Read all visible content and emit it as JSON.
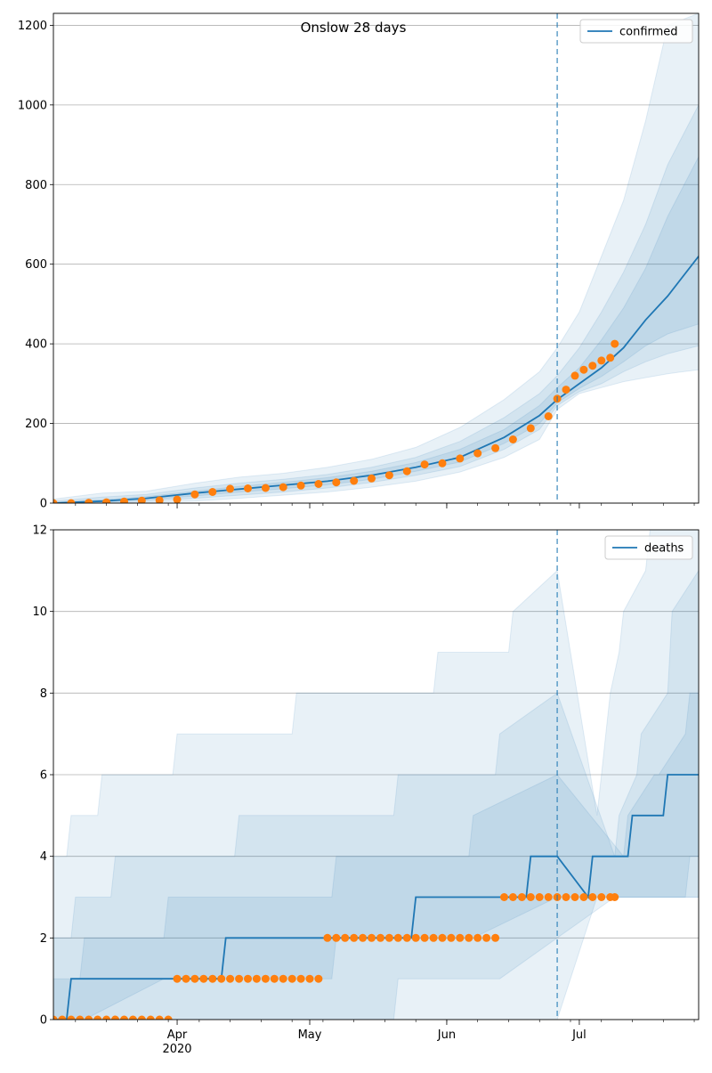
{
  "title": "Onslow 28 days",
  "colors": {
    "model_line": "#1f77b4",
    "observed": "#ff7f0e",
    "band": "#1f77b4",
    "grid": "#b0b0b0",
    "vline": "#1f77b4"
  },
  "x_ticks": [
    {
      "date": "2020-04-01",
      "label": "Apr",
      "sublabel": "2020"
    },
    {
      "date": "2020-05-01",
      "label": "May",
      "sublabel": ""
    },
    {
      "date": "2020-06-01",
      "label": "Jun",
      "sublabel": ""
    },
    {
      "date": "2020-07-01",
      "label": "Jul",
      "sublabel": ""
    }
  ],
  "chart_data": [
    {
      "type": "line",
      "legend": {
        "label": "confirmed",
        "placement": "top-right"
      },
      "grid": {
        "y": true,
        "x": false
      },
      "xlim": [
        "2020-03-04",
        "2020-07-28"
      ],
      "ylim": [
        0,
        1230
      ],
      "y_ticks": [
        0,
        200,
        400,
        600,
        800,
        1000,
        1200
      ],
      "forecast_start": "2020-06-26",
      "model": {
        "x": [
          "2020-03-04",
          "2020-03-15",
          "2020-03-25",
          "2020-04-05",
          "2020-04-15",
          "2020-04-25",
          "2020-05-05",
          "2020-05-15",
          "2020-05-25",
          "2020-06-04",
          "2020-06-14",
          "2020-06-22",
          "2020-06-26",
          "2020-07-01",
          "2020-07-06",
          "2020-07-11",
          "2020-07-16",
          "2020-07-21",
          "2020-07-28"
        ],
        "values": [
          0,
          5,
          12,
          25,
          35,
          45,
          55,
          70,
          90,
          115,
          165,
          220,
          260,
          300,
          340,
          390,
          460,
          520,
          620
        ]
      },
      "bands": [
        {
          "x": [
            "2020-03-04",
            "2020-03-15",
            "2020-03-25",
            "2020-04-05",
            "2020-04-15",
            "2020-04-25",
            "2020-05-05",
            "2020-05-15",
            "2020-05-25",
            "2020-06-04",
            "2020-06-14",
            "2020-06-22",
            "2020-06-26",
            "2020-07-01",
            "2020-07-06",
            "2020-07-11",
            "2020-07-16",
            "2020-07-21",
            "2020-07-28"
          ],
          "low": [
            0,
            0,
            2,
            5,
            12,
            20,
            28,
            40,
            55,
            78,
            115,
            160,
            235,
            275,
            290,
            305,
            315,
            325,
            335
          ],
          "high": [
            10,
            25,
            30,
            50,
            65,
            75,
            90,
            110,
            140,
            190,
            260,
            330,
            390,
            480,
            620,
            760,
            960,
            1200,
            1250
          ]
        },
        {
          "x": [
            "2020-03-04",
            "2020-03-15",
            "2020-03-25",
            "2020-04-05",
            "2020-04-15",
            "2020-04-25",
            "2020-05-05",
            "2020-05-15",
            "2020-05-25",
            "2020-06-04",
            "2020-06-14",
            "2020-06-22",
            "2020-06-26",
            "2020-07-01",
            "2020-07-06",
            "2020-07-11",
            "2020-07-16",
            "2020-07-21",
            "2020-07-28"
          ],
          "low": [
            0,
            2,
            5,
            12,
            20,
            28,
            38,
            52,
            70,
            92,
            135,
            185,
            245,
            280,
            300,
            330,
            355,
            375,
            395
          ],
          "high": [
            5,
            15,
            22,
            38,
            50,
            60,
            72,
            90,
            115,
            155,
            215,
            275,
            320,
            390,
            480,
            580,
            700,
            850,
            1000
          ]
        },
        {
          "x": [
            "2020-03-04",
            "2020-03-15",
            "2020-03-25",
            "2020-04-05",
            "2020-04-15",
            "2020-04-25",
            "2020-05-05",
            "2020-05-15",
            "2020-05-25",
            "2020-06-04",
            "2020-06-14",
            "2020-06-22",
            "2020-06-26",
            "2020-07-01",
            "2020-07-06",
            "2020-07-11",
            "2020-07-16",
            "2020-07-21",
            "2020-07-28"
          ],
          "low": [
            0,
            3,
            8,
            18,
            28,
            36,
            46,
            60,
            80,
            103,
            150,
            200,
            252,
            288,
            318,
            355,
            395,
            425,
            450
          ],
          "high": [
            2,
            8,
            16,
            30,
            42,
            52,
            64,
            80,
            102,
            135,
            185,
            245,
            290,
            340,
            410,
            490,
            590,
            720,
            870
          ]
        }
      ],
      "observed": {
        "x": [
          "2020-03-04",
          "2020-03-08",
          "2020-03-12",
          "2020-03-16",
          "2020-03-20",
          "2020-03-24",
          "2020-03-28",
          "2020-04-01",
          "2020-04-05",
          "2020-04-09",
          "2020-04-13",
          "2020-04-17",
          "2020-04-21",
          "2020-04-25",
          "2020-04-29",
          "2020-05-03",
          "2020-05-07",
          "2020-05-11",
          "2020-05-15",
          "2020-05-19",
          "2020-05-23",
          "2020-05-27",
          "2020-05-31",
          "2020-06-04",
          "2020-06-08",
          "2020-06-12",
          "2020-06-16",
          "2020-06-20",
          "2020-06-24",
          "2020-06-26",
          "2020-06-28",
          "2020-06-30",
          "2020-07-02",
          "2020-07-04",
          "2020-07-06",
          "2020-07-08",
          "2020-07-09"
        ],
        "values": [
          0,
          0,
          1,
          2,
          4,
          6,
          7,
          9,
          22,
          28,
          36,
          37,
          38,
          40,
          44,
          48,
          52,
          56,
          62,
          70,
          80,
          97,
          100,
          112,
          125,
          138,
          160,
          188,
          218,
          262,
          285,
          320,
          335,
          345,
          358,
          365,
          400
        ]
      }
    },
    {
      "type": "line",
      "legend": {
        "label": "deaths",
        "placement": "top-right"
      },
      "grid": {
        "y": true,
        "x": false
      },
      "xlim": [
        "2020-03-04",
        "2020-07-28"
      ],
      "ylim": [
        0,
        12
      ],
      "y_ticks": [
        0,
        2,
        4,
        6,
        8,
        10,
        12
      ],
      "forecast_start": "2020-06-26",
      "model": {
        "x": [
          "2020-03-04",
          "2020-03-07",
          "2020-03-08",
          "2020-04-11",
          "2020-04-12",
          "2020-05-24",
          "2020-05-25",
          "2020-06-19",
          "2020-06-20",
          "2020-06-26",
          "2020-07-03",
          "2020-07-04",
          "2020-07-12",
          "2020-07-13",
          "2020-07-20",
          "2020-07-21",
          "2020-07-28"
        ],
        "values": [
          0,
          0,
          1,
          1,
          2,
          2,
          3,
          3,
          4,
          4,
          3,
          4,
          4,
          5,
          5,
          6,
          6
        ]
      },
      "bands": [
        {
          "x": [
            "2020-03-04",
            "2020-03-07",
            "2020-03-08",
            "2020-03-14",
            "2020-03-15",
            "2020-03-31",
            "2020-04-01",
            "2020-04-27",
            "2020-04-28",
            "2020-05-29",
            "2020-05-30",
            "2020-06-15",
            "2020-06-16",
            "2020-06-26",
            "2020-07-05",
            "2020-07-06",
            "2020-07-07",
            "2020-07-08",
            "2020-07-10",
            "2020-07-11",
            "2020-07-16",
            "2020-07-17",
            "2020-07-28"
          ],
          "low": [
            0,
            0,
            0,
            0,
            0,
            0,
            0,
            0,
            0,
            0,
            0,
            0,
            0,
            0,
            3,
            3,
            3,
            3,
            3,
            3,
            3,
            3,
            3
          ],
          "high": [
            4,
            4,
            5,
            5,
            6,
            6,
            7,
            7,
            8,
            8,
            9,
            9,
            10,
            11,
            5,
            6,
            7,
            8,
            9,
            10,
            11,
            12,
            12
          ]
        },
        {
          "x": [
            "2020-03-04",
            "2020-03-08",
            "2020-03-09",
            "2020-03-17",
            "2020-03-18",
            "2020-04-14",
            "2020-04-15",
            "2020-05-20",
            "2020-05-21",
            "2020-06-12",
            "2020-06-13",
            "2020-06-26",
            "2020-07-09",
            "2020-07-10",
            "2020-07-14",
            "2020-07-15",
            "2020-07-21",
            "2020-07-22",
            "2020-07-28"
          ],
          "low": [
            0,
            0,
            0,
            0,
            0,
            0,
            0,
            0,
            1,
            1,
            1,
            2,
            3,
            3,
            3,
            3,
            3,
            3,
            3
          ],
          "high": [
            2,
            2,
            3,
            3,
            4,
            4,
            5,
            5,
            6,
            6,
            7,
            8,
            4,
            5,
            6,
            7,
            8,
            10,
            11
          ]
        },
        {
          "x": [
            "2020-03-04",
            "2020-03-10",
            "2020-03-11",
            "2020-03-29",
            "2020-03-30",
            "2020-05-06",
            "2020-05-07",
            "2020-06-06",
            "2020-06-07",
            "2020-06-26",
            "2020-07-11",
            "2020-07-12",
            "2020-07-18",
            "2020-07-19",
            "2020-07-25",
            "2020-07-26",
            "2020-07-28"
          ],
          "low": [
            0,
            0,
            0,
            1,
            1,
            1,
            2,
            2,
            2,
            3,
            3,
            3,
            3,
            3,
            3,
            4,
            4
          ],
          "high": [
            1,
            1,
            2,
            2,
            3,
            3,
            4,
            4,
            5,
            6,
            4,
            5,
            6,
            6,
            7,
            8,
            8
          ]
        }
      ],
      "observed": {
        "x": [
          "2020-03-04",
          "2020-03-06",
          "2020-03-08",
          "2020-03-10",
          "2020-03-12",
          "2020-03-14",
          "2020-03-16",
          "2020-03-18",
          "2020-03-20",
          "2020-03-22",
          "2020-03-24",
          "2020-03-26",
          "2020-03-28",
          "2020-03-30",
          "2020-04-01",
          "2020-04-03",
          "2020-04-05",
          "2020-04-07",
          "2020-04-09",
          "2020-04-11",
          "2020-04-13",
          "2020-04-15",
          "2020-04-17",
          "2020-04-19",
          "2020-04-21",
          "2020-04-23",
          "2020-04-25",
          "2020-04-27",
          "2020-04-29",
          "2020-05-01",
          "2020-05-03",
          "2020-05-05",
          "2020-05-07",
          "2020-05-09",
          "2020-05-11",
          "2020-05-13",
          "2020-05-15",
          "2020-05-17",
          "2020-05-19",
          "2020-05-21",
          "2020-05-23",
          "2020-05-25",
          "2020-05-27",
          "2020-05-29",
          "2020-05-31",
          "2020-06-02",
          "2020-06-04",
          "2020-06-06",
          "2020-06-08",
          "2020-06-10",
          "2020-06-12",
          "2020-06-14",
          "2020-06-16",
          "2020-06-18",
          "2020-06-20",
          "2020-06-22",
          "2020-06-24",
          "2020-06-26",
          "2020-06-28",
          "2020-06-30",
          "2020-07-02",
          "2020-07-04",
          "2020-07-06",
          "2020-07-08",
          "2020-07-09"
        ],
        "values": [
          0,
          0,
          0,
          0,
          0,
          0,
          0,
          0,
          0,
          0,
          0,
          0,
          0,
          0,
          1,
          1,
          1,
          1,
          1,
          1,
          1,
          1,
          1,
          1,
          1,
          1,
          1,
          1,
          1,
          1,
          1,
          2,
          2,
          2,
          2,
          2,
          2,
          2,
          2,
          2,
          2,
          2,
          2,
          2,
          2,
          2,
          2,
          2,
          2,
          2,
          2,
          3,
          3,
          3,
          3,
          3,
          3,
          3,
          3,
          3,
          3,
          3,
          3,
          3,
          3
        ]
      }
    }
  ]
}
